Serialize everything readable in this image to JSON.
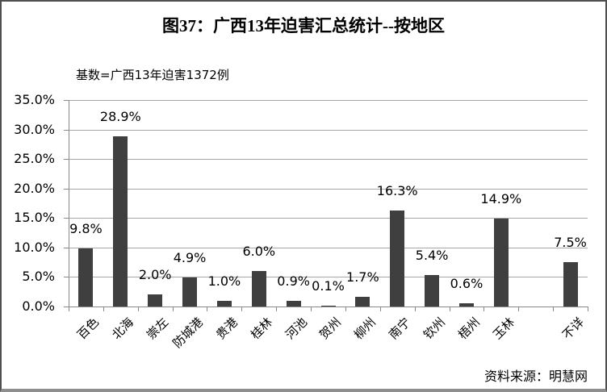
{
  "header": {
    "title": "图37：广西13年迫害汇总统计--按地区"
  },
  "annotations": {
    "base_note": "基数=广西13年迫害1372例",
    "source": "资料来源：明慧网"
  },
  "colors": {
    "bar": "#3f3f3f",
    "gridline": "#a6a6a6",
    "axis": "#898989",
    "text": "#000000"
  },
  "chart_data": {
    "type": "bar",
    "title": "图37：广西13年迫害汇总统计--按地区",
    "subtitle": "基数=广西13年迫害1372例",
    "source": "资料来源：明慧网",
    "categories": [
      "百色",
      "北海",
      "崇左",
      "防城港",
      "贵港",
      "桂林",
      "河池",
      "贺州",
      "柳州",
      "南宁",
      "钦州",
      "梧州",
      "玉林",
      "",
      "不详"
    ],
    "values": [
      9.8,
      28.9,
      2.0,
      4.9,
      1.0,
      6.0,
      0.9,
      0.1,
      1.7,
      16.3,
      5.4,
      0.6,
      14.9,
      null,
      7.5
    ],
    "data_labels": [
      "9.8%",
      "28.9%",
      "2.0%",
      "4.9%",
      "1.0%",
      "6.0%",
      "0.9%",
      "0.1%",
      "1.7%",
      "16.3%",
      "5.4%",
      "0.6%",
      "14.9%",
      "",
      "7.5%"
    ],
    "y_ticks": [
      "0.0%",
      "5.0%",
      "10.0%",
      "15.0%",
      "20.0%",
      "25.0%",
      "30.0%",
      "35.0%"
    ],
    "xlabel": "",
    "ylabel": "",
    "ylim": [
      0,
      35
    ],
    "y_tick_step": 5,
    "grid": true,
    "legend": "none",
    "bar_color": "#3f3f3f"
  }
}
